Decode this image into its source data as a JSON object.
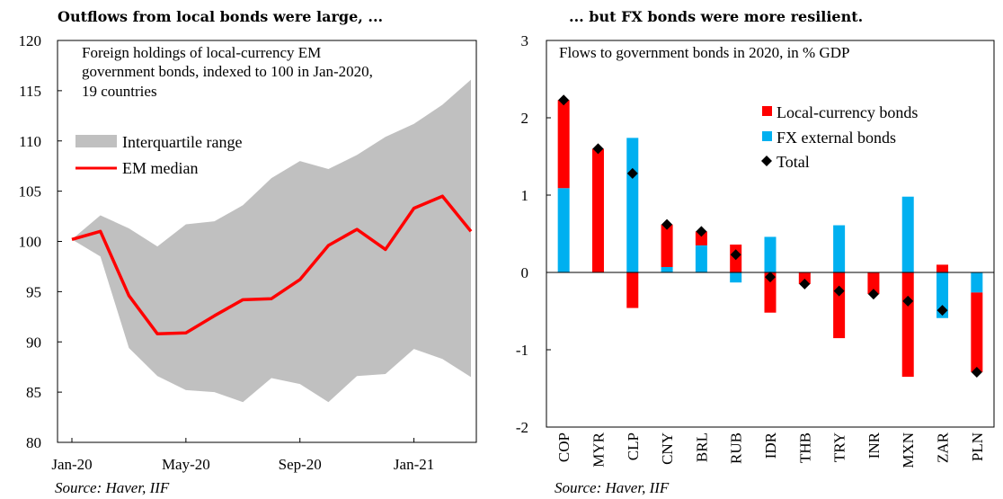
{
  "left": {
    "title": "Outflows from local bonds were large, ...",
    "note_lines": [
      "Foreign holdings of local-currency EM",
      "government bonds, indexed to 100 in Jan-2020,",
      "19 countries"
    ],
    "source": "Source: Haver, IIF",
    "chart_data": {
      "type": "area",
      "ylim": [
        80,
        120
      ],
      "y_ticks": [
        80,
        85,
        90,
        95,
        100,
        105,
        110,
        115,
        120
      ],
      "x_tick_labels": [
        {
          "label": "Jan-20",
          "index": 0
        },
        {
          "label": "May-20",
          "index": 4
        },
        {
          "label": "Sep-20",
          "index": 8
        },
        {
          "label": "Jan-21",
          "index": 12
        }
      ],
      "n_points": 15,
      "series": [
        {
          "name": "Interquartile range",
          "color": "#c0c0c0",
          "upper": [
            100.2,
            102.6,
            101.3,
            99.5,
            101.7,
            102.0,
            103.6,
            106.3,
            108.0,
            107.2,
            108.6,
            110.4,
            111.7,
            113.6,
            116.1
          ],
          "lower": [
            100.2,
            98.5,
            89.4,
            86.6,
            85.2,
            85.0,
            84.0,
            86.4,
            85.8,
            84.0,
            86.6,
            86.8,
            89.3,
            88.3,
            86.5
          ]
        },
        {
          "name": "EM median",
          "color": "#ff0000",
          "values": [
            100.2,
            101.0,
            94.6,
            90.8,
            90.9,
            92.6,
            94.2,
            94.3,
            96.2,
            99.6,
            101.2,
            99.2,
            103.3,
            104.5,
            101.0
          ]
        }
      ]
    },
    "legend": [
      {
        "label": "Interquartile range",
        "color": "#c0c0c0"
      },
      {
        "label": "EM median",
        "color": "#ff0000"
      }
    ]
  },
  "right": {
    "title": "... but FX bonds were more resilient.",
    "note": "Flows to government bonds in 2020, in % GDP",
    "source": "Source: Haver, IIF",
    "chart_data": {
      "type": "bar",
      "stacked": true,
      "ylim": [
        -2,
        3
      ],
      "y_ticks": [
        -2,
        -1,
        0,
        1,
        2,
        3
      ],
      "categories": [
        "COP",
        "MYR",
        "CLP",
        "CNY",
        "BRL",
        "RUB",
        "IDR",
        "THB",
        "TRY",
        "INR",
        "MXN",
        "ZAR",
        "PLN"
      ],
      "series": [
        {
          "name": "Local-currency bonds",
          "color": "#ff0000",
          "values": [
            1.14,
            1.6,
            -0.46,
            0.55,
            0.18,
            0.36,
            -0.52,
            -0.15,
            -0.85,
            -0.28,
            -1.35,
            0.1,
            -1.03
          ]
        },
        {
          "name": "FX external bonds",
          "color": "#00b0f0",
          "values": [
            1.09,
            0.0,
            1.74,
            0.07,
            0.35,
            -0.13,
            0.46,
            0.0,
            0.61,
            0.0,
            0.98,
            -0.59,
            -0.26
          ]
        },
        {
          "name": "Total",
          "color": "#000000",
          "marker": "diamond",
          "values": [
            2.23,
            1.6,
            1.28,
            0.62,
            0.53,
            0.23,
            -0.06,
            -0.15,
            -0.24,
            -0.28,
            -0.37,
            -0.49,
            -1.29
          ]
        }
      ]
    },
    "legend": [
      {
        "label": "Local-currency bonds",
        "color": "#ff0000"
      },
      {
        "label": "FX external bonds",
        "color": "#00b0f0"
      },
      {
        "label": "Total",
        "color": "#000000"
      }
    ]
  }
}
